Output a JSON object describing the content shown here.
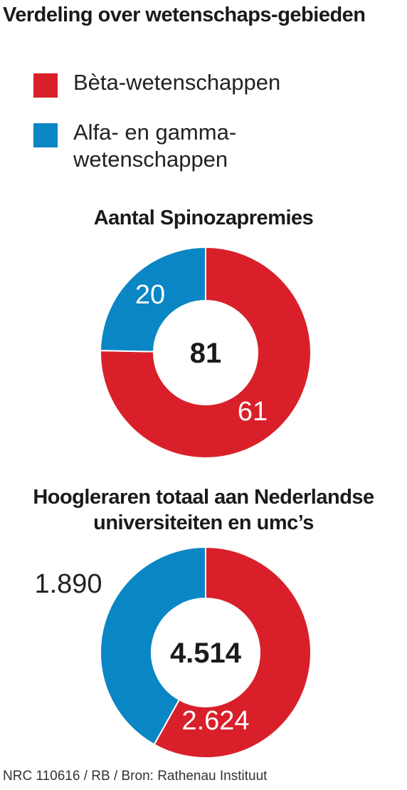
{
  "title": "Verdeling over wetenschaps-gebieden",
  "legend": [
    {
      "label": "Bèta-wetenschappen",
      "color": "#d9202a"
    },
    {
      "label": "Alfa- en gamma-wetenschappen",
      "color": "#0a86c4"
    }
  ],
  "chart_data": [
    {
      "type": "pie",
      "title": "Aantal Spinozapremies",
      "total_label": "81",
      "series": [
        {
          "name": "Bèta-wetenschappen",
          "value": 61,
          "label": "61",
          "color": "#d9202a"
        },
        {
          "name": "Alfa- en gamma-wetenschappen",
          "value": 20,
          "label": "20",
          "color": "#0a86c4"
        }
      ]
    },
    {
      "type": "pie",
      "title": "Hoogleraren totaal aan Nederlandse universiteiten en umc’s",
      "total_label": "4.514",
      "series": [
        {
          "name": "Bèta-wetenschappen",
          "value": 2624,
          "label": "2.624",
          "color": "#d9202a"
        },
        {
          "name": "Alfa- en gamma-wetenschappen",
          "value": 1890,
          "label": "1.890",
          "color": "#0a86c4"
        }
      ]
    }
  ],
  "footer": "NRC 110616 / RB / Bron: Rathenau Instituut"
}
